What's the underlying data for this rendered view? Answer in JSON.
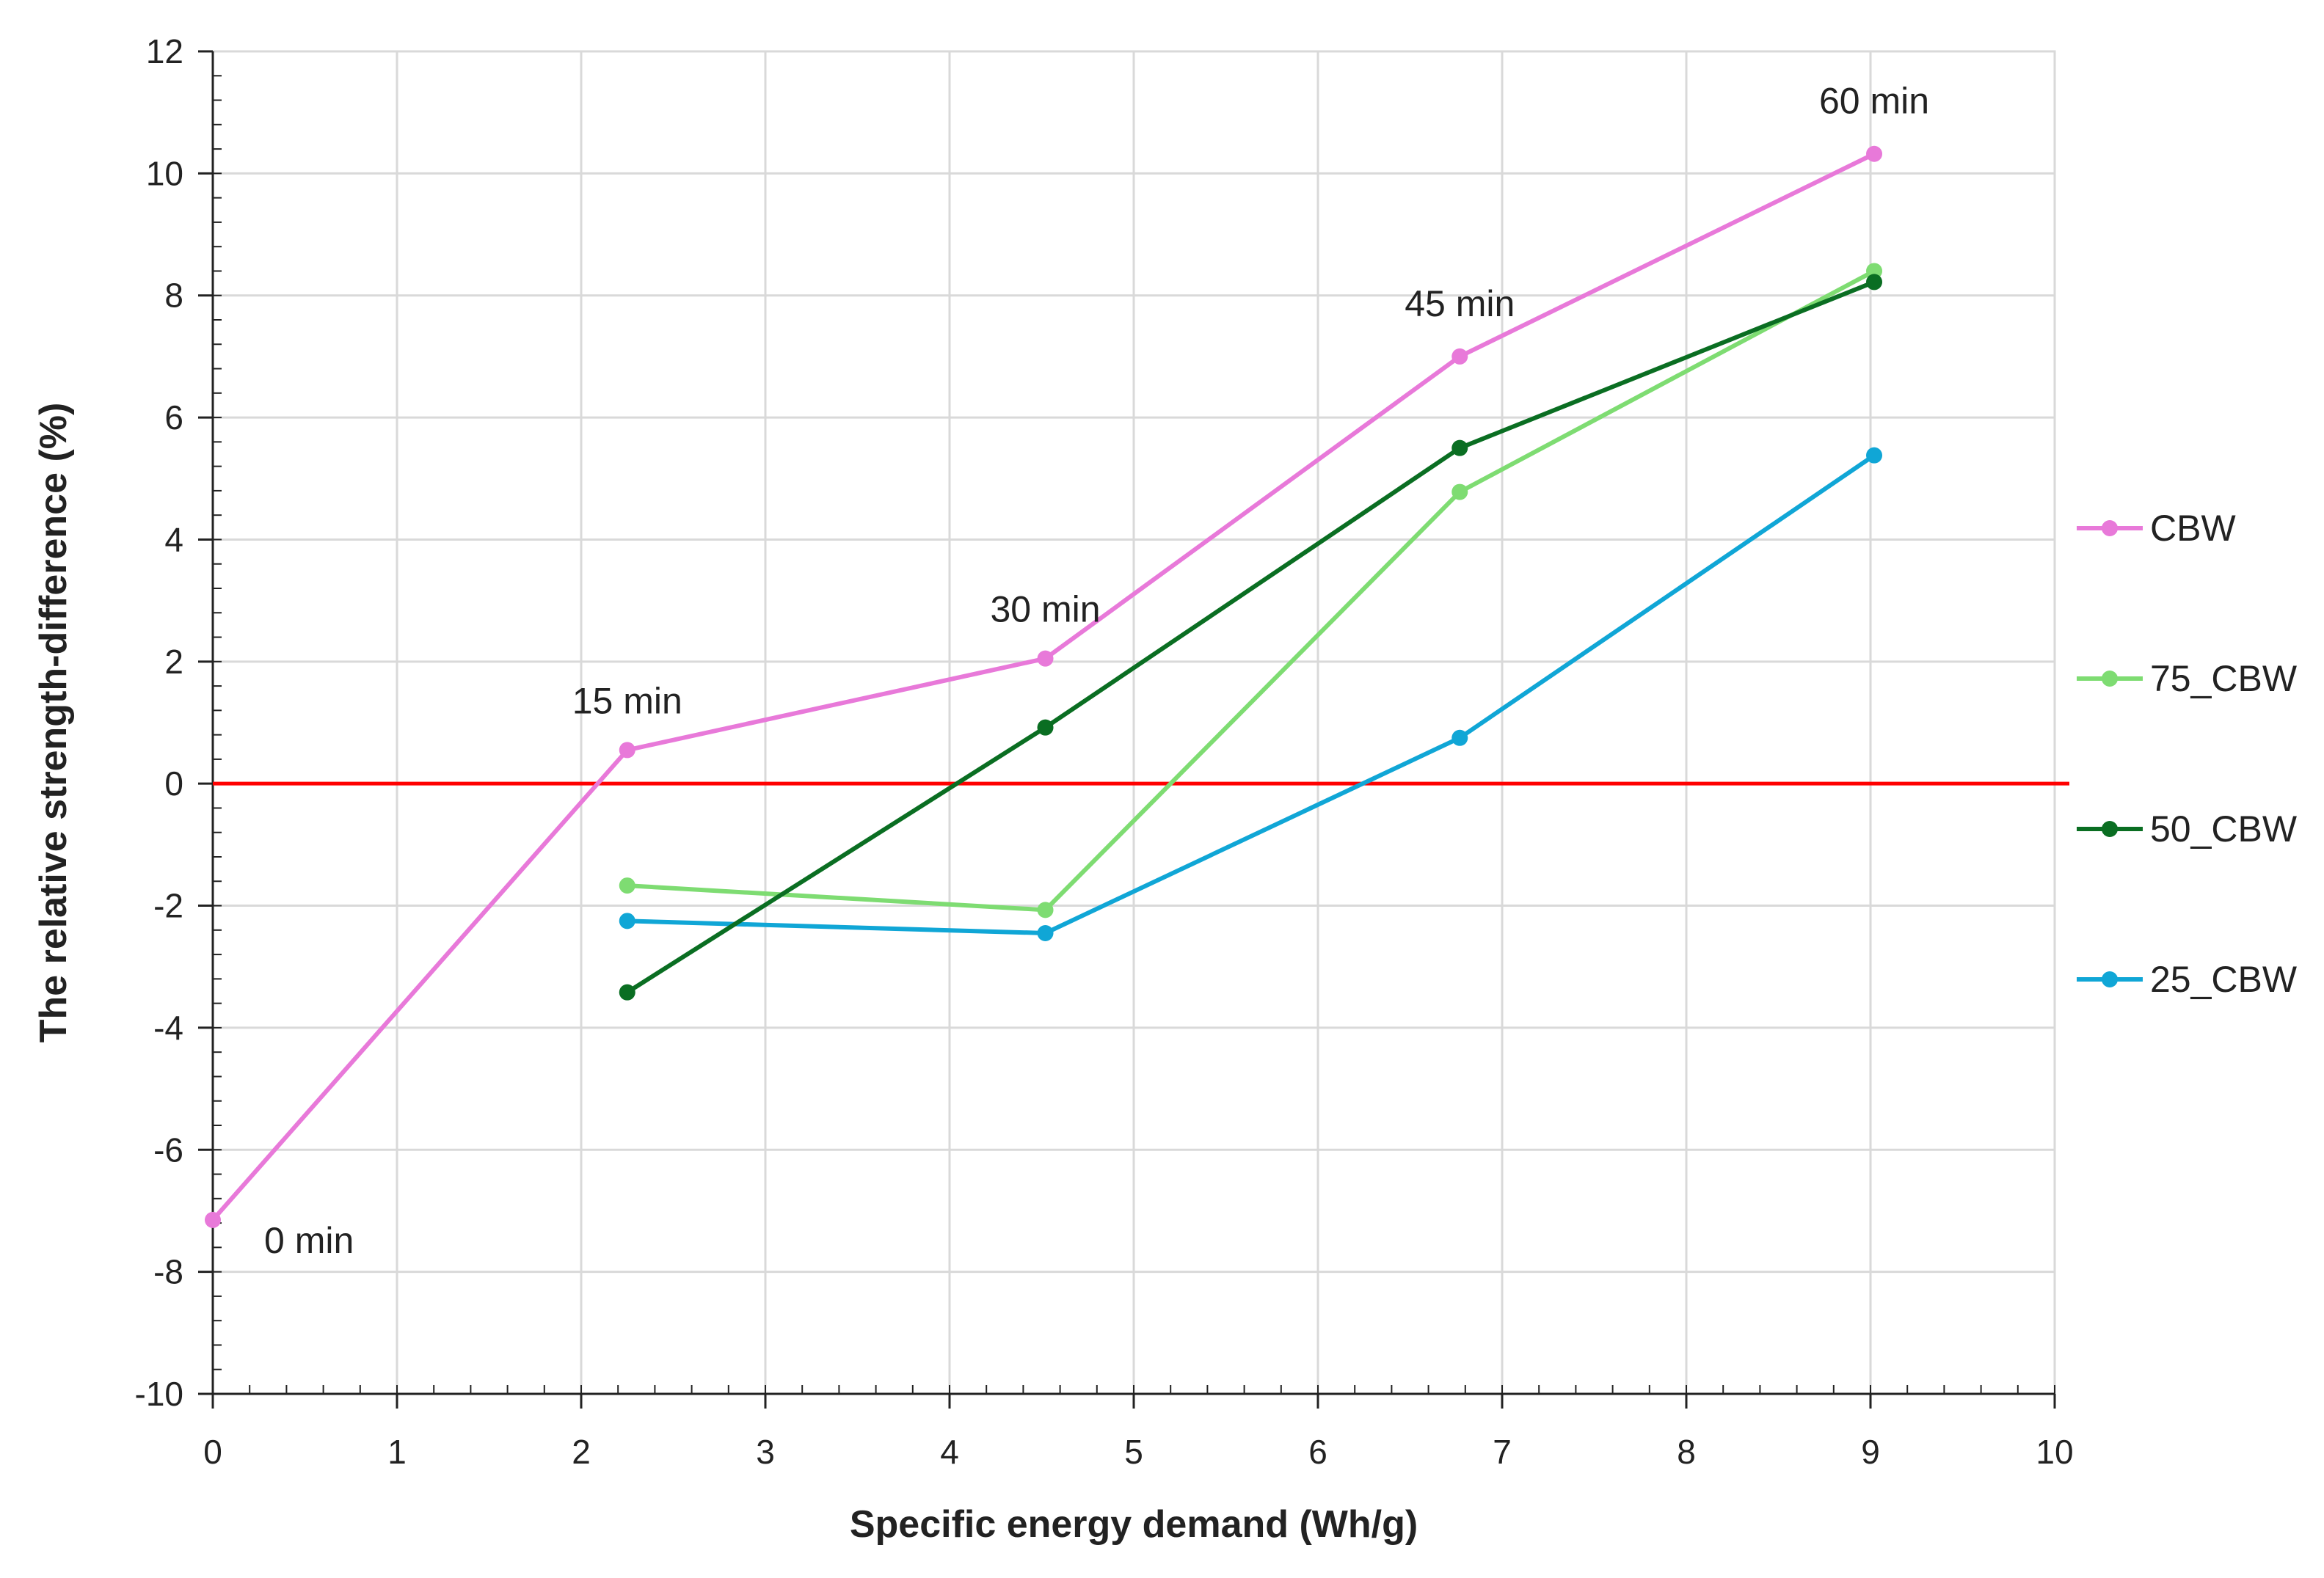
{
  "chart_data": {
    "type": "line",
    "title": "",
    "xlabel": "Specific energy demand  (Wh/g)",
    "ylabel": "The relative strength-difference (%)",
    "xlim": [
      0,
      10
    ],
    "ylim": [
      -10,
      12
    ],
    "xticks": [
      0,
      1,
      2,
      3,
      4,
      5,
      6,
      7,
      8,
      9,
      10
    ],
    "yticks": [
      -10,
      -8,
      -6,
      -4,
      -2,
      0,
      2,
      4,
      6,
      8,
      10,
      12
    ],
    "grid": true,
    "legend_position": "right",
    "reference_line": {
      "y": 0,
      "color": "#ff0000"
    },
    "series": [
      {
        "name": "CBW",
        "color": "#e879d9",
        "points": [
          [
            0,
            -7.15
          ],
          [
            2.25,
            0.55
          ],
          [
            4.52,
            2.05
          ],
          [
            6.77,
            7.0
          ],
          [
            9.02,
            10.32
          ]
        ]
      },
      {
        "name": "75_CBW",
        "color": "#7edc72",
        "points": [
          [
            2.25,
            -1.67
          ],
          [
            4.52,
            -2.07
          ],
          [
            6.77,
            4.78
          ],
          [
            9.02,
            8.4
          ]
        ]
      },
      {
        "name": "50_CBW",
        "color": "#0a6e22",
        "points": [
          [
            2.25,
            -3.42
          ],
          [
            4.52,
            0.92
          ],
          [
            6.77,
            5.5
          ],
          [
            9.02,
            8.22
          ]
        ]
      },
      {
        "name": "25_CBW",
        "color": "#10a6d6",
        "points": [
          [
            2.25,
            -2.25
          ],
          [
            4.52,
            -2.45
          ],
          [
            6.77,
            0.75
          ],
          [
            9.02,
            5.38
          ]
        ]
      }
    ],
    "annotations": [
      {
        "text": "0 min",
        "x": 0,
        "y": -7.15
      },
      {
        "text": "15 min",
        "x": 2.25,
        "y": 0.55
      },
      {
        "text": "30 min",
        "x": 4.52,
        "y": 2.05
      },
      {
        "text": "45 min",
        "x": 6.77,
        "y": 7.0
      },
      {
        "text": "60 min",
        "x": 9.02,
        "y": 10.32
      }
    ]
  }
}
